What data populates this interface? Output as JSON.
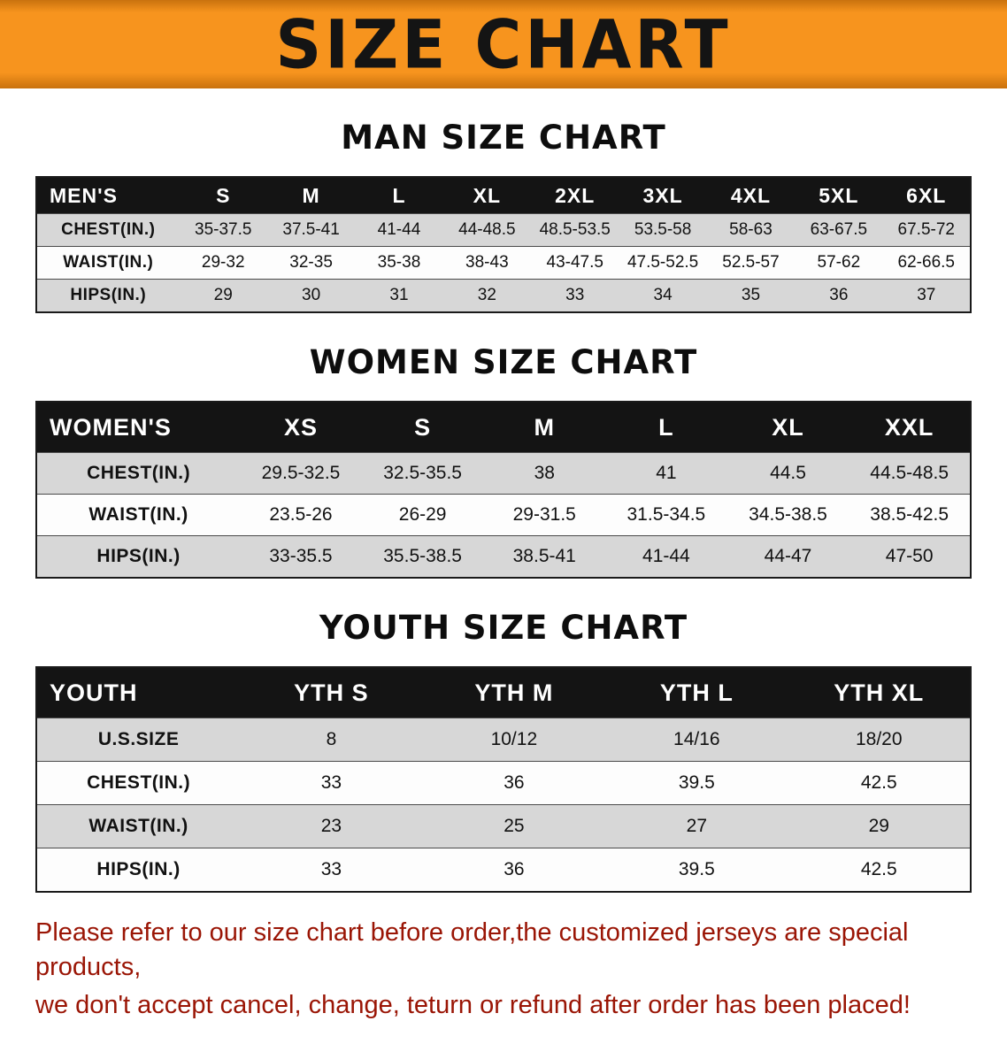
{
  "banner": {
    "title": "SIZE CHART"
  },
  "colors": {
    "banner_bg": "#f7941e",
    "banner_dark": "#c9720e",
    "table_header_bg": "#141414",
    "row_alt": "#d7d7d7",
    "note_text": "#9a1505"
  },
  "chart_data": [
    {
      "type": "table",
      "title": "MAN SIZE CHART",
      "columns": [
        "MEN'S",
        "S",
        "M",
        "L",
        "XL",
        "2XL",
        "3XL",
        "4XL",
        "5XL",
        "6XL"
      ],
      "rows": [
        {
          "label": "CHEST(IN.)",
          "values": [
            "35-37.5",
            "37.5-41",
            "41-44",
            "44-48.5",
            "48.5-53.5",
            "53.5-58",
            "58-63",
            "63-67.5",
            "67.5-72"
          ]
        },
        {
          "label": "WAIST(IN.)",
          "values": [
            "29-32",
            "32-35",
            "35-38",
            "38-43",
            "43-47.5",
            "47.5-52.5",
            "52.5-57",
            "57-62",
            "62-66.5"
          ]
        },
        {
          "label": "HIPS(IN.)",
          "values": [
            "29",
            "30",
            "31",
            "32",
            "33",
            "34",
            "35",
            "36",
            "37"
          ]
        }
      ]
    },
    {
      "type": "table",
      "title": "WOMEN SIZE CHART",
      "columns": [
        "WOMEN'S",
        "XS",
        "S",
        "M",
        "L",
        "XL",
        "XXL"
      ],
      "rows": [
        {
          "label": "CHEST(IN.)",
          "values": [
            "29.5-32.5",
            "32.5-35.5",
            "38",
            "41",
            "44.5",
            "44.5-48.5"
          ]
        },
        {
          "label": "WAIST(IN.)",
          "values": [
            "23.5-26",
            "26-29",
            "29-31.5",
            "31.5-34.5",
            "34.5-38.5",
            "38.5-42.5"
          ]
        },
        {
          "label": "HIPS(IN.)",
          "values": [
            "33-35.5",
            "35.5-38.5",
            "38.5-41",
            "41-44",
            "44-47",
            "47-50"
          ]
        }
      ]
    },
    {
      "type": "table",
      "title": "YOUTH SIZE CHART",
      "columns": [
        "YOUTH",
        "YTH S",
        "YTH M",
        "YTH L",
        "YTH XL"
      ],
      "rows": [
        {
          "label": "U.S.SIZE",
          "values": [
            "8",
            "10/12",
            "14/16",
            "18/20"
          ]
        },
        {
          "label": "CHEST(IN.)",
          "values": [
            "33",
            "36",
            "39.5",
            "42.5"
          ]
        },
        {
          "label": "WAIST(IN.)",
          "values": [
            "23",
            "25",
            "27",
            "29"
          ]
        },
        {
          "label": "HIPS(IN.)",
          "values": [
            "33",
            "36",
            "39.5",
            "42.5"
          ]
        }
      ]
    }
  ],
  "footer": {
    "lines": [
      "Please refer to our size chart before order,the customized jerseys are special products,",
      "we don't accept cancel, change, teturn or refund after order has been placed!"
    ]
  }
}
